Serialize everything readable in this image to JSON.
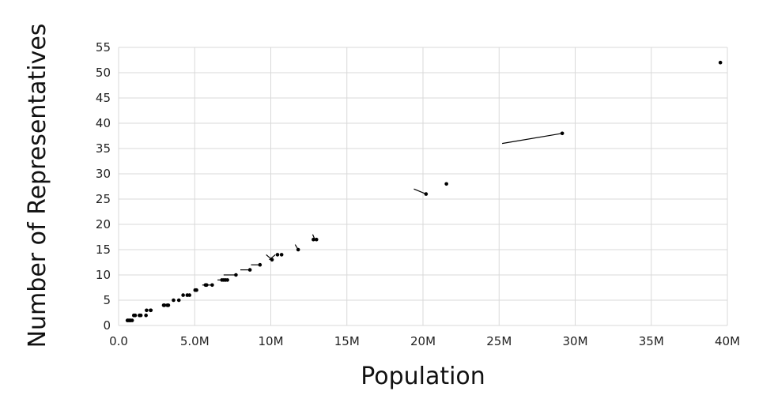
{
  "chart_data": {
    "type": "scatter",
    "title": "",
    "xlabel": "Population",
    "ylabel": "Number of Representatives",
    "xlim": [
      0,
      40000000
    ],
    "ylim": [
      0,
      55
    ],
    "grid": true,
    "x_ticks": [
      0,
      5000000,
      10000000,
      15000000,
      20000000,
      25000000,
      30000000,
      35000000,
      40000000
    ],
    "x_tick_labels": [
      "0.0",
      "5.0M",
      "10M",
      "15M",
      "20M",
      "25M",
      "30M",
      "35M",
      "40M"
    ],
    "y_ticks": [
      0,
      5,
      10,
      15,
      20,
      25,
      30,
      35,
      40,
      45,
      50,
      55
    ],
    "y_tick_labels": [
      "0",
      "5",
      "10",
      "15",
      "20",
      "25",
      "30",
      "35",
      "40",
      "45",
      "50",
      "55"
    ],
    "points": [
      {
        "x": 580000,
        "y": 1
      },
      {
        "x": 640000,
        "y": 1
      },
      {
        "x": 730000,
        "y": 1
      },
      {
        "x": 780000,
        "y": 1
      },
      {
        "x": 890000,
        "y": 1
      },
      {
        "x": 1000000,
        "y": 2
      },
      {
        "x": 1090000,
        "y": 2
      },
      {
        "x": 1370000,
        "y": 2
      },
      {
        "x": 1460000,
        "y": 2
      },
      {
        "x": 1800000,
        "y": 2
      },
      {
        "x": 1840000,
        "y": 3
      },
      {
        "x": 2100000,
        "y": 3
      },
      {
        "x": 2120000,
        "y": 3
      },
      {
        "x": 2960000,
        "y": 4
      },
      {
        "x": 3010000,
        "y": 4
      },
      {
        "x": 3200000,
        "y": 4
      },
      {
        "x": 3270000,
        "y": 4
      },
      {
        "x": 3610000,
        "y": 5
      },
      {
        "x": 3960000,
        "y": 5
      },
      {
        "x": 4240000,
        "y": 6
      },
      {
        "x": 4510000,
        "y": 6
      },
      {
        "x": 4660000,
        "y": 6
      },
      {
        "x": 5030000,
        "y": 7
      },
      {
        "x": 5120000,
        "y": 7
      },
      {
        "x": 5710000,
        "y": 8
      },
      {
        "x": 5780000,
        "y": 8
      },
      {
        "x": 6150000,
        "y": 8
      },
      {
        "x": 6790000,
        "y": 9
      },
      {
        "x": 6910000,
        "y": 9
      },
      {
        "x": 7030000,
        "y": 9
      },
      {
        "x": 7150000,
        "y": 9
      },
      {
        "x": 7710000,
        "y": 10
      },
      {
        "x": 8630000,
        "y": 11
      },
      {
        "x": 9290000,
        "y": 12
      },
      {
        "x": 10080000,
        "y": 13
      },
      {
        "x": 10440000,
        "y": 14
      },
      {
        "x": 10710000,
        "y": 14
      },
      {
        "x": 11800000,
        "y": 15
      },
      {
        "x": 12800000,
        "y": 17
      },
      {
        "x": 13000000,
        "y": 17
      },
      {
        "x": 20200000,
        "y": 26
      },
      {
        "x": 21540000,
        "y": 28
      },
      {
        "x": 29150000,
        "y": 38
      },
      {
        "x": 39540000,
        "y": 52
      }
    ],
    "segments": [
      {
        "x1": 5500000,
        "y1": 8,
        "x2": 6150000,
        "y2": 8
      },
      {
        "x1": 6500000,
        "y1": 9,
        "x2": 7150000,
        "y2": 9
      },
      {
        "x1": 6900000,
        "y1": 10,
        "x2": 7710000,
        "y2": 10
      },
      {
        "x1": 8000000,
        "y1": 11,
        "x2": 8630000,
        "y2": 11
      },
      {
        "x1": 8700000,
        "y1": 12,
        "x2": 9290000,
        "y2": 12
      },
      {
        "x1": 9700000,
        "y1": 14,
        "x2": 10080000,
        "y2": 13
      },
      {
        "x1": 9900000,
        "y1": 13,
        "x2": 10300000,
        "y2": 14
      },
      {
        "x1": 11600000,
        "y1": 16,
        "x2": 11800000,
        "y2": 15
      },
      {
        "x1": 12750000,
        "y1": 18,
        "x2": 12900000,
        "y2": 17
      },
      {
        "x1": 19400000,
        "y1": 27,
        "x2": 20200000,
        "y2": 26
      },
      {
        "x1": 25200000,
        "y1": 36,
        "x2": 29150000,
        "y2": 38
      }
    ]
  }
}
